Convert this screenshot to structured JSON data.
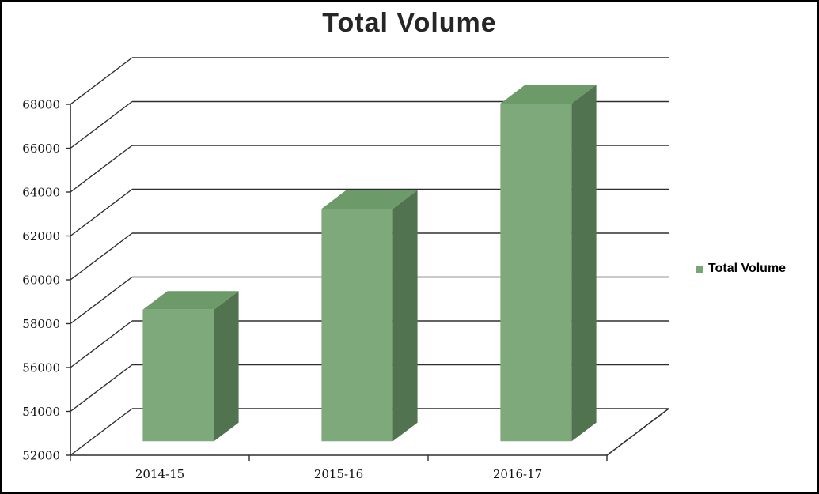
{
  "title": "Total Volume",
  "legend": {
    "label": "Total Volume"
  },
  "colors": {
    "bar_front": "#7ea97a",
    "bar_top": "#6d9a69",
    "bar_side": "#527350",
    "axis_line": "#2e2e2e",
    "title_text": "#262626",
    "label_text": "#111111",
    "legend_marker": "#7aa476"
  },
  "chart_data": {
    "type": "bar",
    "projection": "3d",
    "title": "Total Volume",
    "categories": [
      "2014-15",
      "2015-16",
      "2016-17"
    ],
    "series": [
      {
        "name": "Total Volume",
        "values": [
          58000,
          62600,
          67400
        ]
      }
    ],
    "xlabel": "",
    "ylabel": "",
    "ylim": [
      52000,
      68000
    ],
    "ytick_step": 2000,
    "grid": true,
    "legend_position": "right"
  }
}
